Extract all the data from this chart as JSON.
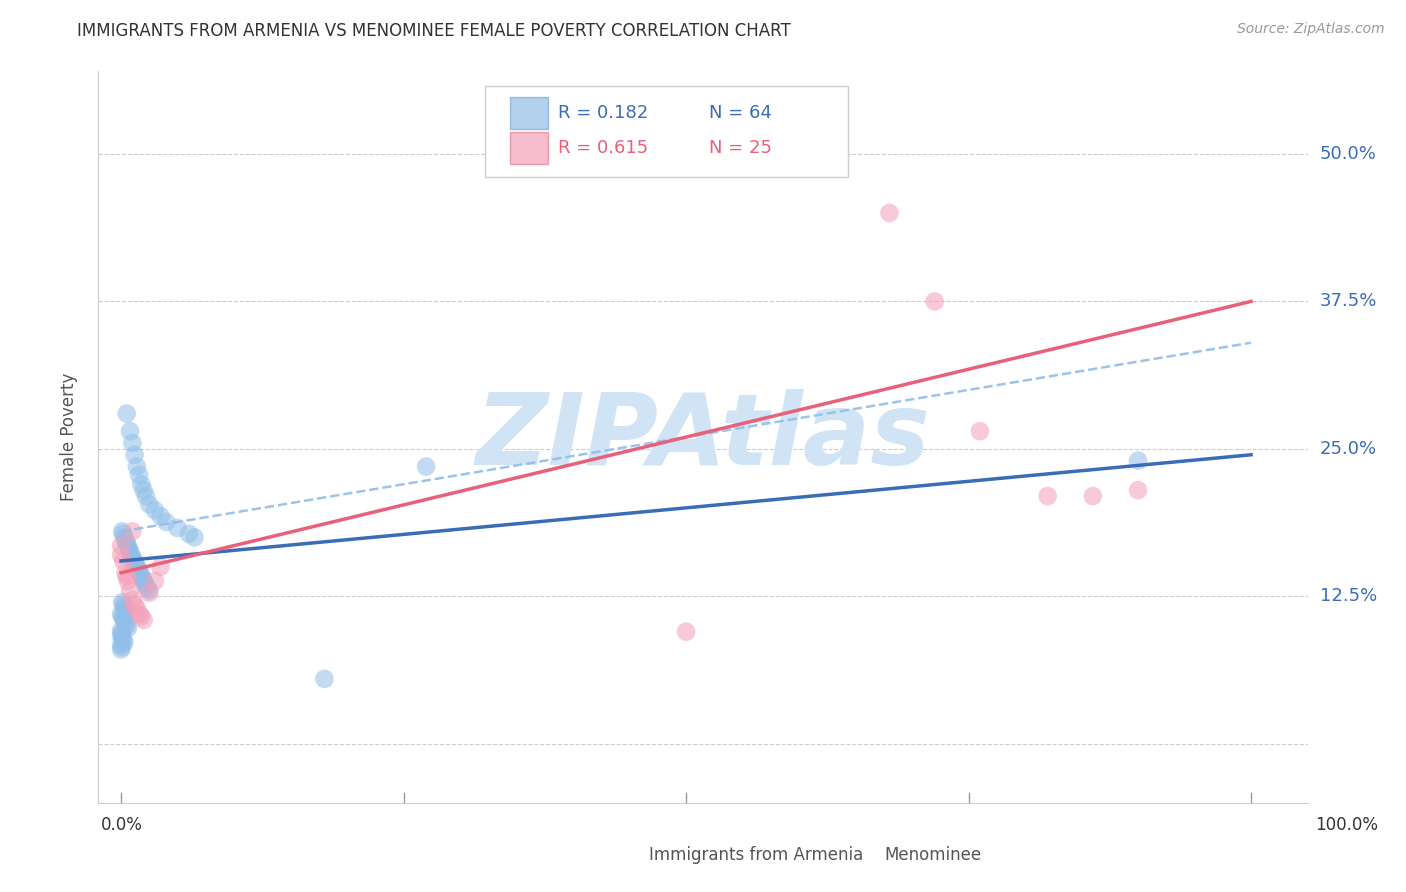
{
  "title": "IMMIGRANTS FROM ARMENIA VS MENOMINEE FEMALE POVERTY CORRELATION CHART",
  "source": "Source: ZipAtlas.com",
  "ylabel": "Female Poverty",
  "yticks": [
    0.0,
    0.125,
    0.25,
    0.375,
    0.5
  ],
  "ytick_labels": [
    "",
    "12.5%",
    "25.0%",
    "37.5%",
    "50.0%"
  ],
  "legend_r1": "R = 0.182",
  "legend_n1": "N = 64",
  "legend_r2": "R = 0.615",
  "legend_n2": "N = 25",
  "blue_color": "#90BEE8",
  "pink_color": "#F4A0B8",
  "blue_line_color": "#3A6DB5",
  "pink_line_color": "#E8607A",
  "dashed_line_color": "#90BEE8",
  "watermark": "ZIPAtlas",
  "watermark_color": "#D0E4F5",
  "xlim": [
    -0.02,
    1.05
  ],
  "ylim": [
    -0.05,
    0.57
  ],
  "blue_line_x0": 0.0,
  "blue_line_y0": 0.155,
  "blue_line_x1": 1.0,
  "blue_line_y1": 0.245,
  "pink_line_x0": 0.0,
  "pink_line_y0": 0.145,
  "pink_line_x1": 1.0,
  "pink_line_y1": 0.375,
  "dashed_line_x0": 0.0,
  "dashed_line_y0": 0.18,
  "dashed_line_x1": 1.0,
  "dashed_line_y1": 0.34,
  "blue_x": [
    0.005,
    0.008,
    0.01,
    0.012,
    0.014,
    0.016,
    0.018,
    0.02,
    0.022,
    0.025,
    0.03,
    0.035,
    0.04,
    0.05,
    0.06,
    0.065,
    0.001,
    0.002,
    0.003,
    0.004,
    0.005,
    0.006,
    0.007,
    0.008,
    0.009,
    0.01,
    0.011,
    0.012,
    0.013,
    0.014,
    0.015,
    0.016,
    0.017,
    0.018,
    0.019,
    0.02,
    0.021,
    0.022,
    0.023,
    0.025,
    0.001,
    0.002,
    0.003,
    0.004,
    0.005,
    0.0,
    0.001,
    0.002,
    0.003,
    0.004,
    0.005,
    0.006,
    0.0,
    0.001,
    0.0,
    0.001,
    0.002,
    0.003,
    0.0,
    0.001,
    0.0,
    0.27,
    0.18,
    0.9
  ],
  "blue_y": [
    0.28,
    0.265,
    0.255,
    0.245,
    0.235,
    0.228,
    0.22,
    0.215,
    0.21,
    0.203,
    0.198,
    0.193,
    0.188,
    0.183,
    0.178,
    0.175,
    0.18,
    0.178,
    0.175,
    0.172,
    0.17,
    0.168,
    0.165,
    0.163,
    0.16,
    0.158,
    0.156,
    0.154,
    0.152,
    0.15,
    0.148,
    0.146,
    0.144,
    0.142,
    0.14,
    0.138,
    0.136,
    0.134,
    0.132,
    0.13,
    0.12,
    0.118,
    0.116,
    0.114,
    0.112,
    0.11,
    0.108,
    0.106,
    0.104,
    0.102,
    0.1,
    0.098,
    0.096,
    0.094,
    0.092,
    0.09,
    0.088,
    0.086,
    0.084,
    0.082,
    0.08,
    0.235,
    0.055,
    0.24
  ],
  "pink_x": [
    0.0,
    0.002,
    0.004,
    0.006,
    0.008,
    0.01,
    0.012,
    0.014,
    0.016,
    0.018,
    0.02,
    0.025,
    0.03,
    0.035,
    0.5,
    0.62,
    0.68,
    0.72,
    0.76,
    0.82,
    0.86,
    0.9,
    0.0,
    0.005,
    0.01
  ],
  "pink_y": [
    0.16,
    0.155,
    0.145,
    0.138,
    0.13,
    0.122,
    0.118,
    0.115,
    0.11,
    0.108,
    0.105,
    0.128,
    0.138,
    0.15,
    0.095,
    0.505,
    0.45,
    0.375,
    0.265,
    0.21,
    0.21,
    0.215,
    0.168,
    0.142,
    0.18
  ]
}
